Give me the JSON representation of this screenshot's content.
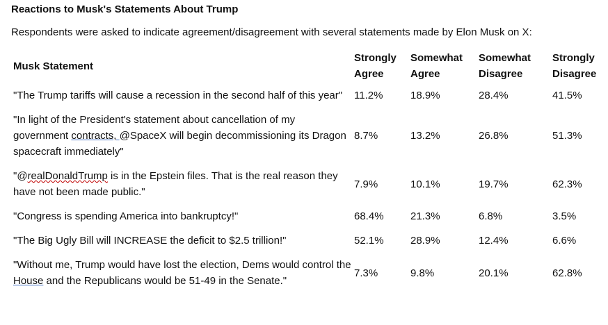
{
  "title": "Reactions to Musk's Statements About Trump",
  "subtitle": "Respondents were asked to indicate agreement/disagreement with several statements made by Elon Musk on X:",
  "table": {
    "headers": {
      "statement": "Musk Statement",
      "strongly_agree_1": "Strongly",
      "strongly_agree_2": "Agree",
      "somewhat_agree_1": "Somewhat",
      "somewhat_agree_2": "Agree",
      "somewhat_disagree_1": "Somewhat",
      "somewhat_disagree_2": "Disagree",
      "strongly_disagree_1": "Strongly",
      "strongly_disagree_2": "Disagree"
    },
    "rows": [
      {
        "statement": "\"The Trump tariffs will cause a recession in the second half of this year\"",
        "strongly_agree": "11.2%",
        "somewhat_agree": "18.9%",
        "somewhat_disagree": "28.4%",
        "strongly_disagree": "41.5%"
      },
      {
        "statement_a": "\"In light of the President's statement about cancellation of my government ",
        "statement_link": "contracts, ",
        "statement_b": "@SpaceX will begin decommissioning its Dragon spacecraft immediately\"",
        "strongly_agree": "8.7%",
        "somewhat_agree": "13.2%",
        "somewhat_disagree": "26.8%",
        "strongly_disagree": "51.3%"
      },
      {
        "statement_a": "\"@",
        "statement_squiggle": "realDonaldTrump",
        "statement_b": " is in the Epstein files. That is the real reason they have not been made public.\"",
        "strongly_agree": "7.9%",
        "somewhat_agree": "10.1%",
        "somewhat_disagree": "19.7%",
        "strongly_disagree": "62.3%"
      },
      {
        "statement": "\"Congress is spending America into bankruptcy!\"",
        "strongly_agree": "68.4%",
        "somewhat_agree": "21.3%",
        "somewhat_disagree": "6.8%",
        "strongly_disagree": "3.5%"
      },
      {
        "statement": "\"The Big Ugly Bill will INCREASE the deficit to $2.5 trillion!\"",
        "strongly_agree": "52.1%",
        "somewhat_agree": "28.9%",
        "somewhat_disagree": "12.4%",
        "strongly_disagree": "6.6%"
      },
      {
        "statement_a": "\"Without me, Trump would have lost the election, Dems would control the ",
        "statement_link": "House",
        "statement_b": " and the Republicans would be 51-49 in the Senate.\"",
        "strongly_agree": "7.3%",
        "somewhat_agree": "9.8%",
        "somewhat_disagree": "20.1%",
        "strongly_disagree": "62.8%"
      }
    ]
  }
}
